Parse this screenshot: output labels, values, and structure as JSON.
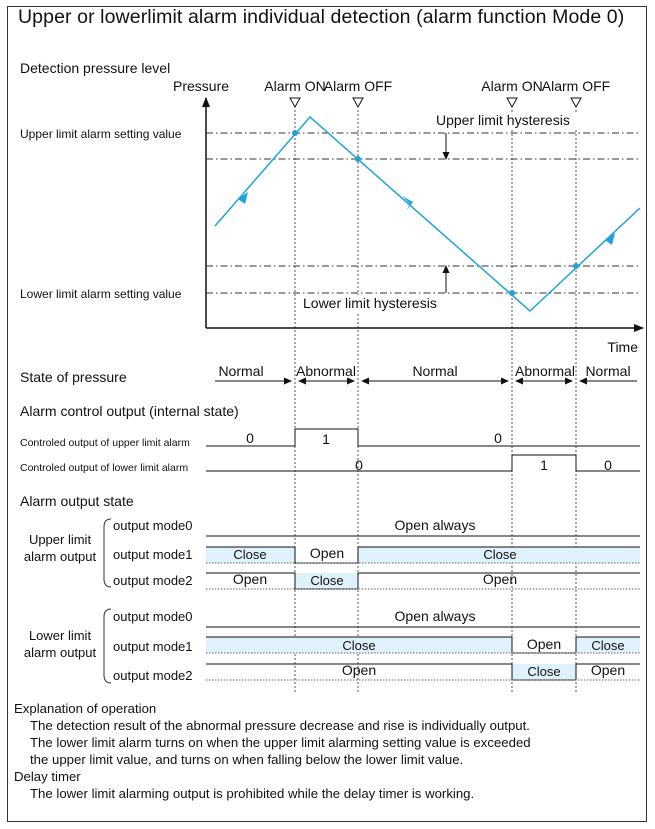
{
  "title": "Upper or lowerlimit alarm individual detection (alarm function Mode 0)",
  "graph": {
    "section_label": "Detection pressure level",
    "y_axis_label": "Pressure",
    "x_axis_label": "Time",
    "events": [
      "Alarm ON",
      "Alarm OFF",
      "Alarm ON",
      "Alarm OFF"
    ],
    "upper_setting_label": "Upper limit alarm setting value",
    "lower_setting_label": "Lower limit alarm setting value",
    "upper_hysteresis_label": "Upper limit hysteresis",
    "lower_hysteresis_label": "Lower limit hysteresis"
  },
  "state": {
    "label": "State of pressure",
    "segments": [
      "Normal",
      "Abnormal",
      "Normal",
      "Abnormal",
      "Normal"
    ]
  },
  "control": {
    "section_label": "Alarm control output (internal state)",
    "upper_label": "Controled output of upper limit alarm",
    "lower_label": "Controled output of lower limit alarm",
    "upper_values": [
      "0",
      "1",
      "0"
    ],
    "lower_values": [
      "0",
      "1",
      "0"
    ]
  },
  "output_state": {
    "section_label": "Alarm output state",
    "upper_group_label": [
      "Upper limit",
      "alarm output"
    ],
    "lower_group_label": [
      "Lower limit",
      "alarm output"
    ],
    "mode_labels": [
      "output mode0",
      "output mode1",
      "output mode2"
    ],
    "upper": {
      "mode0": [
        "Open always"
      ],
      "mode1": [
        "Close",
        "Open",
        "Close"
      ],
      "mode2": [
        "Open",
        "Close",
        "Open"
      ]
    },
    "lower": {
      "mode0": [
        "Open always"
      ],
      "mode1": [
        "Close",
        "Open",
        "Close"
      ],
      "mode2": [
        "Open",
        "Close",
        "Open"
      ]
    }
  },
  "explanation": {
    "heading": "Explanation of operation",
    "lines": [
      "The detection result of the abnormal pressure decrease and rise is individually output.",
      "The lower limit alarm turns on when the upper limit alarming setting value is exceeded",
      "the upper limit value, and turns on when falling below the lower limit value."
    ]
  },
  "delay_timer": {
    "heading": "Delay timer",
    "text": "The lower limit alarming output is prohibited while the delay timer is working."
  },
  "colors": {
    "signal": "#1fa3d8",
    "close_fill": "#dff1fb",
    "line": "#111111"
  }
}
